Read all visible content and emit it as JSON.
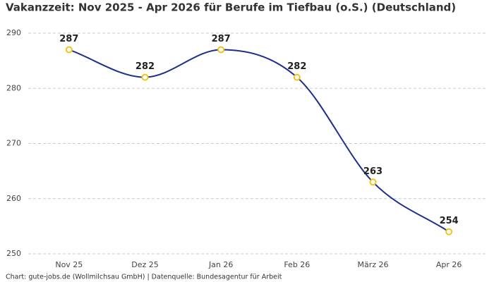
{
  "chart_data": {
    "type": "line",
    "title": "Vakanzzeit: Nov 2025 - Apr 2026 für Berufe im Tiefbau (o.S.) (Deutschland)",
    "footer": "Chart: gute-jobs.de (Wollmilchsau GmbH) | Datenquelle: Bundesagentur für Arbeit",
    "categories": [
      "Nov 25",
      "Dez 25",
      "Jan 26",
      "Feb 26",
      "März 26",
      "Apr 26"
    ],
    "values": [
      287,
      282,
      287,
      282,
      263,
      254
    ],
    "color": "#1f2f8c",
    "marker_color": "#f0c419",
    "ylim": [
      250,
      290
    ],
    "yticks": [
      250,
      260,
      270,
      280,
      290
    ],
    "grid": true
  }
}
